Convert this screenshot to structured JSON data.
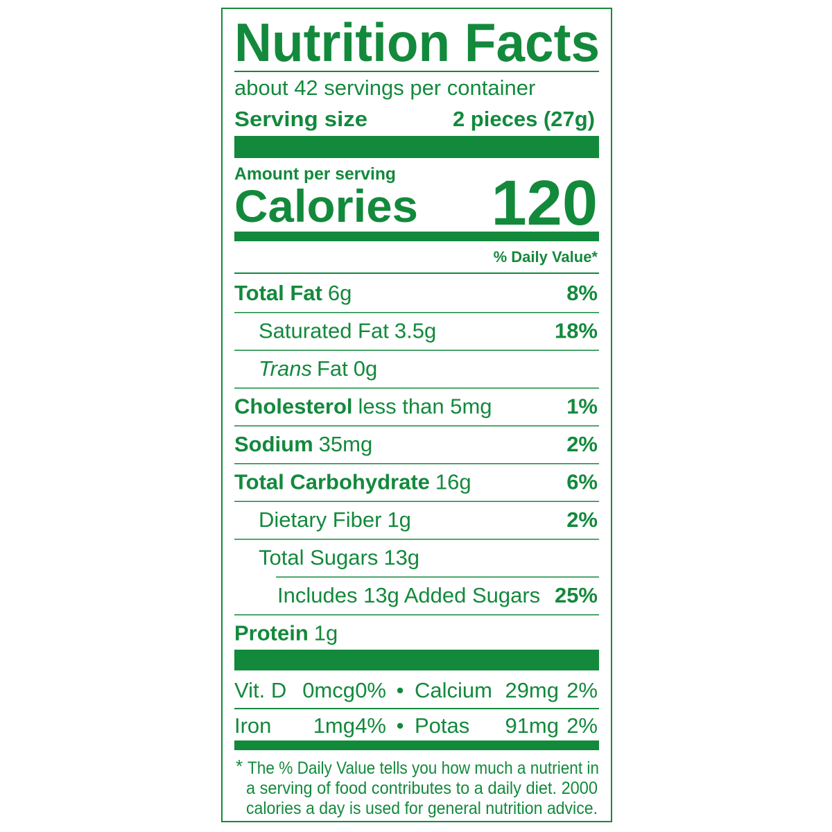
{
  "title": "Nutrition Facts",
  "servings": "about 42 servings per container",
  "serving_size": {
    "label": "Serving size",
    "value": "2 pieces (27g)"
  },
  "amount_per_serving": "Amount per serving",
  "calories": {
    "label": "Calories",
    "value": "120"
  },
  "daily_value_header": "% Daily Value*",
  "nutrients": [
    {
      "name": "Total Fat",
      "amount": "6g",
      "dv": "8%",
      "bold": true,
      "indent": 0
    },
    {
      "name": "Saturated Fat",
      "amount": "3.5g",
      "dv": "18%",
      "bold": false,
      "indent": 1
    },
    {
      "italic": "Trans",
      "name": "Fat",
      "amount": "0g",
      "bold": false,
      "indent": 1
    },
    {
      "name": "Cholesterol",
      "amount": "less than 5mg",
      "dv": "1%",
      "bold": true,
      "indent": 0
    },
    {
      "name": "Sodium",
      "amount": "35mg",
      "dv": "2%",
      "bold": true,
      "indent": 0
    },
    {
      "name": "Total Carbohydrate",
      "amount": "16g",
      "dv": "6%",
      "bold": true,
      "indent": 0
    },
    {
      "name": "Dietary Fiber",
      "amount": "1g",
      "dv": "2%",
      "bold": false,
      "indent": 1
    },
    {
      "name": "Total Sugars",
      "amount": "13g",
      "bold": false,
      "indent": 1
    },
    {
      "name": "Includes 13g Added Sugars",
      "dv": "25%",
      "bold": false,
      "indent": 2
    },
    {
      "name": "Protein",
      "amount": "1g",
      "bold": true,
      "indent": 0
    }
  ],
  "vitamins": [
    [
      {
        "name": "Vit. D",
        "amount": "0mcg",
        "dv": "0%"
      },
      {
        "name": "Calcium",
        "amount": "29mg",
        "dv": "2%"
      }
    ],
    [
      {
        "name": "Iron",
        "amount": "1mg",
        "dv": "4%"
      },
      {
        "name": "Potas",
        "amount": "91mg",
        "dv": "2%"
      }
    ]
  ],
  "separator": "•",
  "footnote": {
    "mark": "*",
    "lines": [
      "The % Daily Value tells you how much a nutrient in",
      "a serving of food contributes to a daily diet. 2000",
      "calories a day is used for general nutrition advice."
    ]
  }
}
